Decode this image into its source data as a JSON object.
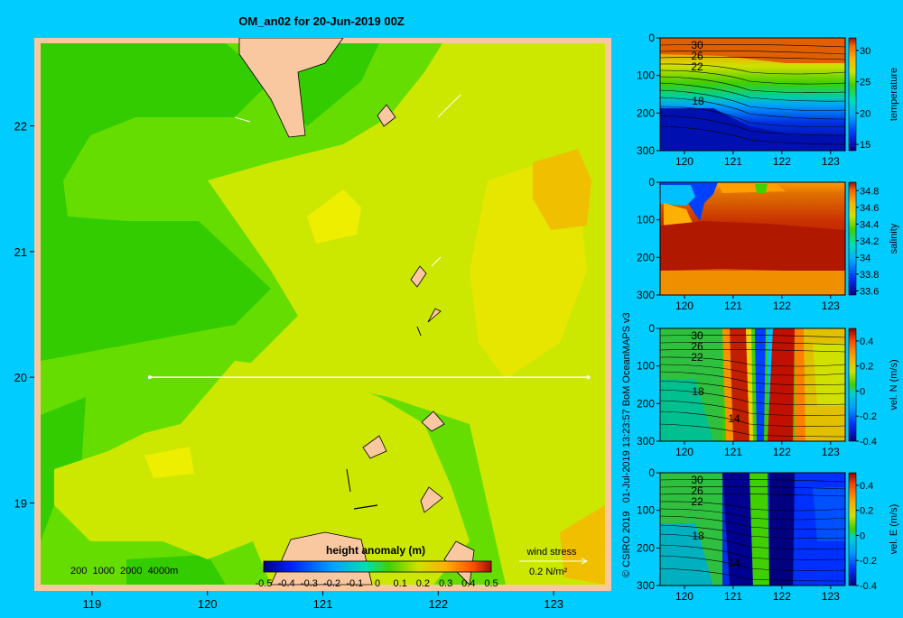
{
  "page": {
    "title": "OM_an02 for 20-Jun-2019 00Z",
    "side_caption": "© CSIRO 2019   01-Jul-2019 13:23:57 BoM OceanMAPS v3",
    "background": "#00ccff"
  },
  "chart_data": [
    {
      "type": "heatmap",
      "id": "map",
      "title": "OM_an02 for 20-Jun-2019 00Z",
      "xlim": [
        118.5,
        123.5
      ],
      "ylim": [
        18.3,
        22.7
      ],
      "x_ticks": [
        119,
        120,
        121,
        122,
        123
      ],
      "y_ticks": [
        19,
        20,
        21,
        22
      ],
      "colorbar": {
        "label": "height anomaly (m)",
        "range": [
          -0.5,
          0.5
        ],
        "ticks": [
          "-0.5",
          "-0.4",
          "-0.3",
          "-0.2",
          "-0.1",
          "0",
          "0.1",
          "0.2",
          "0.3",
          "0.4",
          "0.5"
        ],
        "colors": [
          "#000080",
          "#0000e0",
          "#0050ff",
          "#00a0ff",
          "#00e0e0",
          "#00d040",
          "#66dd00",
          "#cce800",
          "#ffd000",
          "#ff8000",
          "#c02000"
        ]
      },
      "bathymetry_legend": "200  1000  2000  4000m",
      "wind_stress": {
        "label": "wind stress",
        "scale": "0.2 N/m²"
      },
      "section_line": {
        "lon": [
          119.5,
          123.3
        ],
        "lat": [
          20.0,
          20.0
        ]
      },
      "field_levels": {
        "mid_green": "#33cc00",
        "light_green": "#66dd00",
        "yellow_green": "#cce800",
        "yellow": "#eeee00",
        "orange": "#f0c000"
      },
      "land_color": "#f9c8a0"
    },
    {
      "type": "heatmap",
      "id": "temperature",
      "ylabel": "temperature",
      "xlim": [
        119.5,
        123.3
      ],
      "ylim": [
        0,
        300
      ],
      "x_ticks": [
        120,
        121,
        122,
        123
      ],
      "y_ticks": [
        0,
        100,
        200,
        300
      ],
      "colorbar": {
        "range": [
          14,
          32
        ],
        "ticks": [
          "15",
          "20",
          "25",
          "30"
        ]
      },
      "contour_labels": [
        "30",
        "26",
        "22",
        "18"
      ]
    },
    {
      "type": "heatmap",
      "id": "salinity",
      "ylabel": "salinity",
      "xlim": [
        119.5,
        123.3
      ],
      "ylim": [
        0,
        300
      ],
      "x_ticks": [
        120,
        121,
        122,
        123
      ],
      "y_ticks": [
        0,
        100,
        200,
        300
      ],
      "colorbar": {
        "range": [
          33.55,
          34.9
        ],
        "ticks": [
          "33.6",
          "33.8",
          "34",
          "34.2",
          "34.4",
          "34.6",
          "34.8"
        ]
      }
    },
    {
      "type": "heatmap",
      "id": "velN",
      "ylabel": "vel. N (m/s)",
      "xlim": [
        119.5,
        123.3
      ],
      "ylim": [
        0,
        300
      ],
      "x_ticks": [
        120,
        121,
        122,
        123
      ],
      "y_ticks": [
        0,
        100,
        200,
        300
      ],
      "colorbar": {
        "range": [
          -0.4,
          0.5
        ],
        "ticks": [
          "-0.4",
          "-0.2",
          "0",
          "0.2",
          "0.4"
        ]
      },
      "contour_labels": [
        "30",
        "26",
        "22",
        "18",
        "14"
      ]
    },
    {
      "type": "heatmap",
      "id": "velE",
      "ylabel": "vel. E (m/s)",
      "xlim": [
        119.5,
        123.3
      ],
      "ylim": [
        0,
        300
      ],
      "x_ticks": [
        120,
        121,
        122,
        123
      ],
      "y_ticks": [
        0,
        100,
        200,
        300
      ],
      "colorbar": {
        "range": [
          -0.4,
          0.5
        ],
        "ticks": [
          "-0.4",
          "-0.2",
          "0",
          "0.2",
          "0.4"
        ]
      },
      "contour_labels": [
        "30",
        "26",
        "22",
        "18",
        "14"
      ]
    }
  ]
}
